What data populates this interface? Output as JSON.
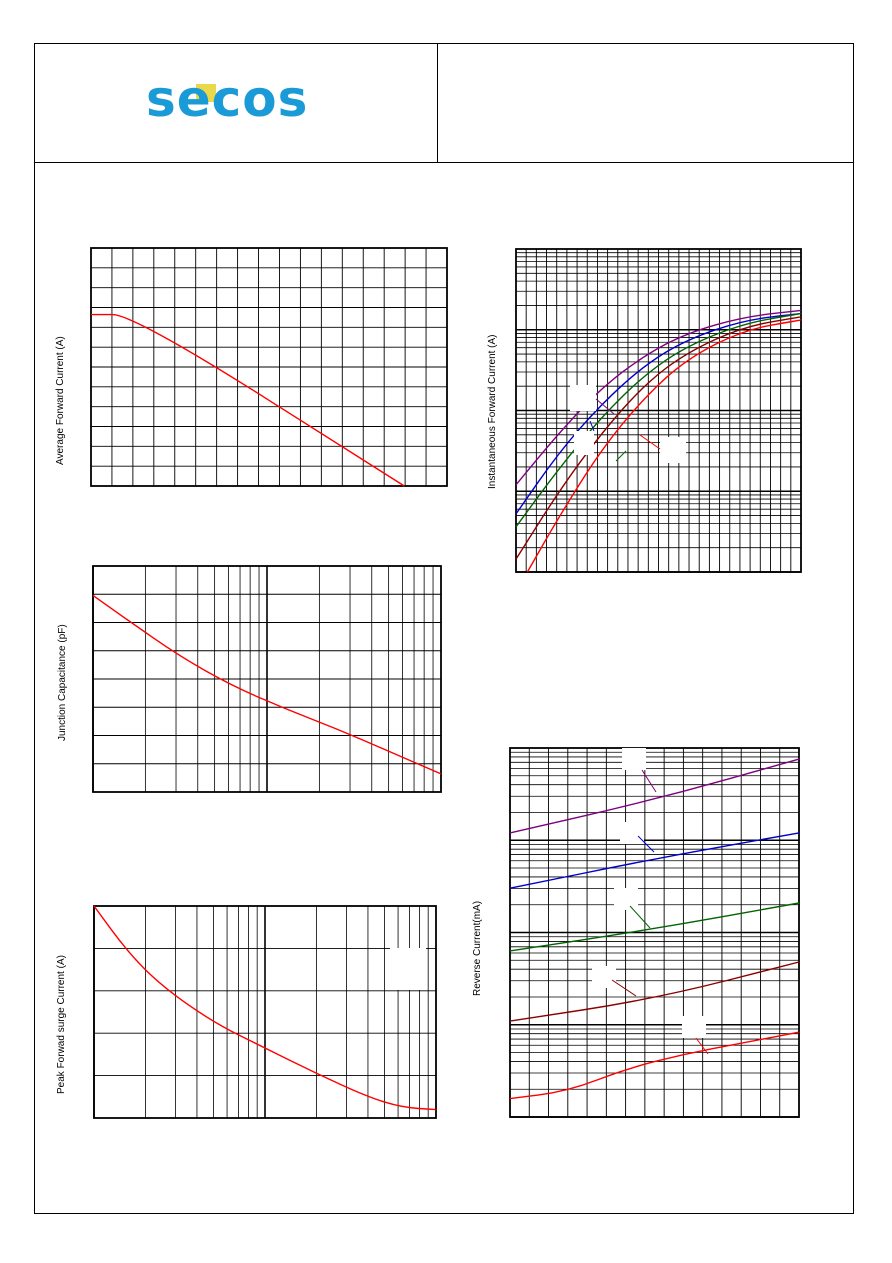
{
  "logo": {
    "text": "secos",
    "colors": {
      "letters": "#1a9ad6",
      "accent": "#e8d84a"
    }
  },
  "chart_data": [
    {
      "type": "line",
      "id": "derating",
      "title": "",
      "xlabel": "",
      "ylabel": "Average Forward Current (A)",
      "grid": true,
      "series": [
        {
          "color": "#ff0000",
          "x": [
            0,
            0.12,
            0.88
          ],
          "y": [
            0.72,
            0.72,
            0
          ]
        }
      ]
    },
    {
      "type": "line",
      "id": "forward",
      "title": "",
      "xlabel": "",
      "ylabel": "Instantaneous Forward Current (A)",
      "grid": true,
      "log_y": true,
      "series": [
        {
          "color": "#800080",
          "x": [
            0,
            0.15,
            0.3,
            0.45,
            0.6,
            0.8,
            1.0
          ],
          "y": [
            0.27,
            0.43,
            0.57,
            0.67,
            0.74,
            0.79,
            0.81
          ]
        },
        {
          "color": "#0000cc",
          "x": [
            0,
            0.15,
            0.3,
            0.45,
            0.6,
            0.8,
            1.0
          ],
          "y": [
            0.18,
            0.37,
            0.52,
            0.64,
            0.72,
            0.78,
            0.8
          ]
        },
        {
          "color": "#006400",
          "x": [
            0,
            0.15,
            0.3,
            0.45,
            0.6,
            0.8,
            1.0
          ],
          "y": [
            0.14,
            0.32,
            0.48,
            0.61,
            0.7,
            0.77,
            0.8
          ]
        },
        {
          "color": "#8b0000",
          "x": [
            0,
            0.15,
            0.3,
            0.45,
            0.6,
            0.8,
            1.0
          ],
          "y": [
            0.04,
            0.25,
            0.43,
            0.58,
            0.68,
            0.76,
            0.79
          ]
        },
        {
          "color": "#ff0000",
          "x": [
            0.04,
            0.15,
            0.3,
            0.45,
            0.6,
            0.8,
            1.0
          ],
          "y": [
            0.0,
            0.17,
            0.38,
            0.54,
            0.66,
            0.75,
            0.78
          ]
        }
      ]
    },
    {
      "type": "line",
      "id": "capacitance",
      "title": "",
      "xlabel": "",
      "ylabel": "Junction Capacitance (pF)",
      "grid": true,
      "log_x": true,
      "series": [
        {
          "color": "#ff0000",
          "x": [
            0,
            0.1,
            0.25,
            0.4,
            0.55,
            0.7,
            0.85,
            1.0
          ],
          "y": [
            0.87,
            0.76,
            0.6,
            0.47,
            0.37,
            0.28,
            0.18,
            0.08
          ]
        }
      ]
    },
    {
      "type": "line",
      "id": "surge",
      "title": "",
      "xlabel": "",
      "ylabel": "Peak Forwad surge Current (A)",
      "grid": true,
      "log_x": true,
      "series": [
        {
          "color": "#ff0000",
          "x": [
            0,
            0.1,
            0.2,
            0.35,
            0.5,
            0.65,
            0.8,
            0.9,
            1.0
          ],
          "y": [
            1.0,
            0.78,
            0.62,
            0.45,
            0.33,
            0.21,
            0.1,
            0.05,
            0.04
          ]
        }
      ]
    },
    {
      "type": "line",
      "id": "reverse",
      "title": "",
      "xlabel": "",
      "ylabel": "Reverse Current(mA)",
      "grid": true,
      "log_y": true,
      "series": [
        {
          "color": "#800080",
          "x": [
            0,
            0.5,
            1.0
          ],
          "y": [
            0.77,
            0.86,
            0.97
          ]
        },
        {
          "color": "#0000cc",
          "x": [
            0,
            0.5,
            1.0
          ],
          "y": [
            0.62,
            0.7,
            0.77
          ]
        },
        {
          "color": "#006400",
          "x": [
            0,
            0.5,
            1.0
          ],
          "y": [
            0.45,
            0.51,
            0.58
          ]
        },
        {
          "color": "#8b0000",
          "x": [
            0,
            0.5,
            1.0
          ],
          "y": [
            0.26,
            0.32,
            0.42
          ]
        },
        {
          "color": "#ff0000",
          "x": [
            0,
            0.2,
            0.4,
            0.6,
            0.8,
            1.0
          ],
          "y": [
            0.05,
            0.07,
            0.13,
            0.17,
            0.2,
            0.23
          ]
        }
      ]
    }
  ]
}
